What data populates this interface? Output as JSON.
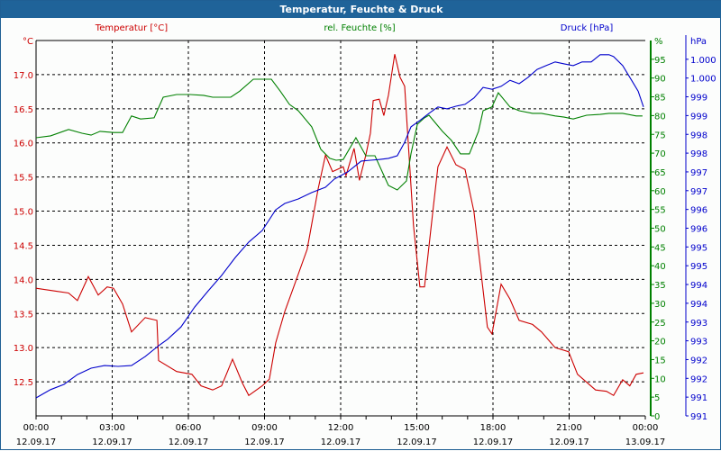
{
  "title": "Temperatur, Feuchte & Druck",
  "colors": {
    "temp": "#cc0000",
    "hum": "#008000",
    "press": "#0000cc",
    "titlebar": "#1f6399"
  },
  "chart_data": {
    "type": "line",
    "title": "Temperatur, Feuchte & Druck",
    "xlabel": "",
    "x_unit": "hours since 12.09.17 00:00",
    "xlim": [
      0,
      24
    ],
    "x_ticks": [
      {
        "time": "00:00",
        "date": "12.09.17"
      },
      {
        "time": "03:00",
        "date": "12.09.17"
      },
      {
        "time": "06:00",
        "date": "12.09.17"
      },
      {
        "time": "09:00",
        "date": "12.09.17"
      },
      {
        "time": "12:00",
        "date": "12.09.17"
      },
      {
        "time": "15:00",
        "date": "12.09.17"
      },
      {
        "time": "18:00",
        "date": "12.09.17"
      },
      {
        "time": "21:00",
        "date": "12.09.17"
      },
      {
        "time": "00:00",
        "date": "13.09.17"
      }
    ],
    "grid": true,
    "axes": {
      "temp": {
        "unit_label": "°C",
        "legend": "Temperatur [°C]",
        "ylim": [
          12.0,
          17.5
        ],
        "ticks": [
          "12.5",
          "13.0",
          "13.5",
          "14.0",
          "14.5",
          "15.0",
          "15.5",
          "16.0",
          "16.5",
          "17.0"
        ]
      },
      "hum": {
        "unit_label": "%",
        "legend": "rel. Feuchte [%]",
        "ylim": [
          0,
          100
        ],
        "ticks": [
          "0",
          "5",
          "10",
          "15",
          "20",
          "25",
          "30",
          "35",
          "40",
          "45",
          "50",
          "55",
          "60",
          "65",
          "70",
          "75",
          "80",
          "85",
          "90",
          "95"
        ]
      },
      "press": {
        "unit_label": "hPa",
        "legend": "Druck [hPa]",
        "ylim": [
          990.5,
          1000.5
        ],
        "ticks": [
          "991",
          "991",
          "992",
          "992",
          "993",
          "993",
          "994",
          "994",
          "995",
          "995",
          "996",
          "996",
          "997",
          "997",
          "998",
          "998",
          "999",
          "999",
          "1.000",
          "1.000"
        ]
      }
    },
    "series": [
      {
        "name": "Temperatur [°C]",
        "axis": "temp",
        "points": [
          [
            0,
            13.87
          ],
          [
            0.75,
            13.83
          ],
          [
            1.28,
            13.8
          ],
          [
            1.63,
            13.69
          ],
          [
            2.06,
            14.04
          ],
          [
            2.45,
            13.77
          ],
          [
            2.8,
            13.89
          ],
          [
            3.05,
            13.87
          ],
          [
            3.41,
            13.64
          ],
          [
            3.76,
            13.23
          ],
          [
            4.3,
            13.44
          ],
          [
            4.76,
            13.4
          ],
          [
            4.83,
            12.81
          ],
          [
            5.54,
            12.65
          ],
          [
            6.14,
            12.61
          ],
          [
            6.5,
            12.44
          ],
          [
            6.96,
            12.38
          ],
          [
            7.31,
            12.44
          ],
          [
            7.74,
            12.83
          ],
          [
            8.13,
            12.48
          ],
          [
            8.38,
            12.3
          ],
          [
            8.91,
            12.44
          ],
          [
            9.19,
            12.54
          ],
          [
            9.44,
            13.07
          ],
          [
            9.8,
            13.53
          ],
          [
            10.15,
            13.89
          ],
          [
            10.68,
            14.44
          ],
          [
            11.11,
            15.32
          ],
          [
            11.4,
            15.82
          ],
          [
            11.68,
            15.58
          ],
          [
            12.1,
            15.65
          ],
          [
            12.21,
            15.52
          ],
          [
            12.53,
            15.92
          ],
          [
            12.74,
            15.45
          ],
          [
            12.99,
            15.82
          ],
          [
            13.17,
            16.14
          ],
          [
            13.28,
            16.62
          ],
          [
            13.52,
            16.64
          ],
          [
            13.7,
            16.4
          ],
          [
            13.88,
            16.7
          ],
          [
            14.13,
            17.3
          ],
          [
            14.34,
            16.96
          ],
          [
            14.52,
            16.83
          ],
          [
            14.87,
            14.79
          ],
          [
            15.12,
            13.89
          ],
          [
            15.3,
            13.89
          ],
          [
            15.65,
            15.06
          ],
          [
            15.83,
            15.65
          ],
          [
            16.19,
            15.94
          ],
          [
            16.54,
            15.68
          ],
          [
            16.9,
            15.61
          ],
          [
            17.25,
            14.99
          ],
          [
            17.78,
            13.3
          ],
          [
            17.96,
            13.2
          ],
          [
            18.32,
            13.93
          ],
          [
            18.67,
            13.71
          ],
          [
            19.03,
            13.4
          ],
          [
            19.56,
            13.34
          ],
          [
            19.91,
            13.23
          ],
          [
            20.45,
            13.0
          ],
          [
            20.98,
            12.94
          ],
          [
            21.33,
            12.61
          ],
          [
            22.04,
            12.38
          ],
          [
            22.47,
            12.36
          ],
          [
            22.75,
            12.3
          ],
          [
            23.11,
            12.53
          ],
          [
            23.39,
            12.44
          ],
          [
            23.64,
            12.61
          ],
          [
            23.93,
            12.63
          ]
        ]
      },
      {
        "name": "rel. Feuchte [%]",
        "axis": "hum",
        "points": [
          [
            0,
            74.1
          ],
          [
            0.57,
            74.6
          ],
          [
            1.28,
            76.3
          ],
          [
            1.81,
            75.3
          ],
          [
            2.17,
            74.8
          ],
          [
            2.52,
            75.8
          ],
          [
            3.05,
            75.5
          ],
          [
            3.41,
            75.5
          ],
          [
            3.76,
            79.9
          ],
          [
            4.12,
            79.1
          ],
          [
            4.65,
            79.4
          ],
          [
            5.01,
            84.9
          ],
          [
            5.54,
            85.6
          ],
          [
            6.07,
            85.6
          ],
          [
            6.6,
            85.4
          ],
          [
            6.96,
            84.9
          ],
          [
            7.67,
            84.9
          ],
          [
            8.02,
            86.5
          ],
          [
            8.56,
            89.7
          ],
          [
            9.27,
            89.7
          ],
          [
            9.62,
            86.5
          ],
          [
            9.98,
            83.0
          ],
          [
            10.33,
            81.3
          ],
          [
            10.86,
            77.0
          ],
          [
            11.22,
            71.0
          ],
          [
            11.57,
            68.6
          ],
          [
            11.82,
            68.1
          ],
          [
            12.1,
            68.3
          ],
          [
            12.6,
            74.1
          ],
          [
            12.99,
            69.3
          ],
          [
            13.35,
            69.3
          ],
          [
            13.88,
            61.4
          ],
          [
            14.23,
            60.2
          ],
          [
            14.59,
            62.6
          ],
          [
            14.77,
            69.8
          ],
          [
            15.02,
            77.7
          ],
          [
            15.3,
            79.4
          ],
          [
            15.48,
            80.1
          ],
          [
            16.01,
            75.8
          ],
          [
            16.36,
            73.4
          ],
          [
            16.72,
            69.8
          ],
          [
            17.07,
            69.8
          ],
          [
            17.43,
            75.8
          ],
          [
            17.61,
            81.3
          ],
          [
            17.96,
            82.3
          ],
          [
            18.21,
            86.1
          ],
          [
            18.67,
            82.3
          ],
          [
            19.03,
            81.3
          ],
          [
            19.56,
            80.6
          ],
          [
            19.91,
            80.6
          ],
          [
            20.45,
            79.9
          ],
          [
            20.8,
            79.6
          ],
          [
            21.16,
            79.1
          ],
          [
            21.69,
            80.1
          ],
          [
            22.22,
            80.3
          ],
          [
            22.57,
            80.6
          ],
          [
            23.11,
            80.6
          ],
          [
            23.64,
            79.9
          ],
          [
            23.89,
            79.9
          ]
        ]
      },
      {
        "name": "Druck [hPa]",
        "axis": "press",
        "points": [
          [
            0,
            990.98
          ],
          [
            0.57,
            991.2
          ],
          [
            1.1,
            991.34
          ],
          [
            1.63,
            991.6
          ],
          [
            2.17,
            991.77
          ],
          [
            2.7,
            991.84
          ],
          [
            3.23,
            991.82
          ],
          [
            3.76,
            991.84
          ],
          [
            4.3,
            992.08
          ],
          [
            4.83,
            992.37
          ],
          [
            5.18,
            992.54
          ],
          [
            5.71,
            992.87
          ],
          [
            6.25,
            993.4
          ],
          [
            6.78,
            993.83
          ],
          [
            7.31,
            994.24
          ],
          [
            7.85,
            994.72
          ],
          [
            8.38,
            995.13
          ],
          [
            8.91,
            995.44
          ],
          [
            9.44,
            995.99
          ],
          [
            9.8,
            996.16
          ],
          [
            10.33,
            996.28
          ],
          [
            10.86,
            996.45
          ],
          [
            11.4,
            996.59
          ],
          [
            11.75,
            996.81
          ],
          [
            12.28,
            997.0
          ],
          [
            12.81,
            997.29
          ],
          [
            13.17,
            997.31
          ],
          [
            13.52,
            997.33
          ],
          [
            13.88,
            997.36
          ],
          [
            14.23,
            997.43
          ],
          [
            14.52,
            997.79
          ],
          [
            14.77,
            998.2
          ],
          [
            15.12,
            998.37
          ],
          [
            15.48,
            998.56
          ],
          [
            15.83,
            998.73
          ],
          [
            16.19,
            998.68
          ],
          [
            16.54,
            998.75
          ],
          [
            16.9,
            998.8
          ],
          [
            17.25,
            998.97
          ],
          [
            17.61,
            999.25
          ],
          [
            17.96,
            999.2
          ],
          [
            18.32,
            999.28
          ],
          [
            18.67,
            999.44
          ],
          [
            19.03,
            999.35
          ],
          [
            19.38,
            999.52
          ],
          [
            19.74,
            999.73
          ],
          [
            20.09,
            999.83
          ],
          [
            20.45,
            999.93
          ],
          [
            20.8,
            999.88
          ],
          [
            21.16,
            999.83
          ],
          [
            21.51,
            999.93
          ],
          [
            21.87,
            999.93
          ],
          [
            22.22,
            1000.12
          ],
          [
            22.57,
            1000.12
          ],
          [
            22.75,
            1000.07
          ],
          [
            23.11,
            999.83
          ],
          [
            23.46,
            999.44
          ],
          [
            23.72,
            999.15
          ],
          [
            23.93,
            998.73
          ]
        ]
      }
    ]
  }
}
